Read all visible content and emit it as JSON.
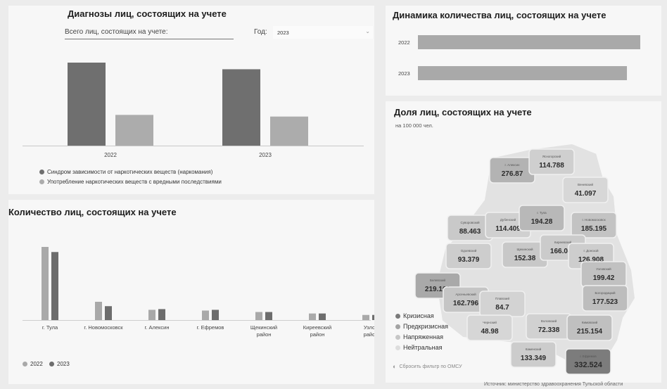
{
  "diagnoses": {
    "title": "Диагнозы лиц, состоящих на учете",
    "total_label": "Всего лиц, состоящих на учете:",
    "year_label": "Год:",
    "year_value": "2023",
    "legend": [
      {
        "label": "Синдром зависимости от наркотических веществ (наркомания)",
        "color": "#6f6f6f"
      },
      {
        "label": "Употребление наркотических веществ с вредными последствиями",
        "color": "#acacac"
      }
    ]
  },
  "dynamics": {
    "title": "Динамика количества лиц, состоящих на учете"
  },
  "count": {
    "title": "Количество лиц, состоящих на учете",
    "legend": [
      {
        "label": "2022",
        "color": "#a9a9a9"
      },
      {
        "label": "2023",
        "color": "#6d6d6d"
      }
    ]
  },
  "share": {
    "title": "Доля лиц, состоящих на учете",
    "subtitle": "на 100 000 чел.",
    "legend": [
      {
        "label": "Кризисная",
        "color": "#7a7a7a"
      },
      {
        "label": "Предкризисная",
        "color": "#a3a3a3"
      },
      {
        "label": "Напряженная",
        "color": "#c6c6c6"
      },
      {
        "label": "Нейтральная",
        "color": "#dddddd"
      }
    ],
    "reset_label": "Сбросить фильтр по ОМСУ",
    "regions": [
      {
        "name": "г. Алексин",
        "value": "276.87",
        "shade": "#b3b3b3"
      },
      {
        "name": "Ясногорский",
        "value": "114.788",
        "shade": "#cfcfcf"
      },
      {
        "name": "Веневский",
        "value": "41.097",
        "shade": "#d7d7d7"
      },
      {
        "name": "Суворовский",
        "value": "88.463",
        "shade": "#c9c9c9"
      },
      {
        "name": "Дубенский",
        "value": "114.409",
        "shade": "#d0d0d0"
      },
      {
        "name": "г. Тула",
        "value": "194.28",
        "shade": "#b8b8b8"
      },
      {
        "name": "г. Новомосковск",
        "value": "185.195",
        "shade": "#c3c3c3"
      },
      {
        "name": "Одоевский",
        "value": "93.379",
        "shade": "#cdcdcd"
      },
      {
        "name": "Щекинский",
        "value": "152.38",
        "shade": "#c8c8c8"
      },
      {
        "name": "Киреевский",
        "value": "166.041",
        "shade": "#cbcbcb"
      },
      {
        "name": "г. Донской",
        "value": "126.908",
        "shade": "#cdcdcd"
      },
      {
        "name": "Узловский",
        "value": "199.42",
        "shade": "#c1c1c1"
      },
      {
        "name": "Белевский",
        "value": "219.169",
        "shade": "#a9a9a9"
      },
      {
        "name": "Арсеньевский",
        "value": "162.796",
        "shade": "#c5c5c5"
      },
      {
        "name": "Плавский",
        "value": "84.7",
        "shade": "#d3d3d3"
      },
      {
        "name": "Богородицкий",
        "value": "177.523",
        "shade": "#bdbdbd"
      },
      {
        "name": "Чернский",
        "value": "48.98",
        "shade": "#d6d6d6"
      },
      {
        "name": "Воловский",
        "value": "72.338",
        "shade": "#d1d1d1"
      },
      {
        "name": "Кимовский",
        "value": "215.154",
        "shade": "#c0c0c0"
      },
      {
        "name": "Каменский",
        "value": "133.349",
        "shade": "#cccccc"
      },
      {
        "name": "г. Ефремов",
        "value": "332.524",
        "shade": "#7c7c7c"
      }
    ]
  },
  "source": "Источник: министерство здравоохранения Тульской области",
  "chart_data": [
    {
      "type": "bar",
      "title": "Диагнозы лиц, состоящих на учете",
      "categories": [
        "2022",
        "2023"
      ],
      "series": [
        {
          "name": "Синдром зависимости от наркотических веществ (наркомания)",
          "values": [
            100,
            92
          ]
        },
        {
          "name": "Употребление наркотических веществ с вредными последствиями",
          "values": [
            37,
            35
          ]
        }
      ]
    },
    {
      "type": "bar",
      "orientation": "horizontal",
      "title": "Динамика количества лиц, состоящих на учете",
      "categories": [
        "2022",
        "2023"
      ],
      "values": [
        100,
        94
      ]
    },
    {
      "type": "bar",
      "title": "Количество лиц, состоящих на учете",
      "categories": [
        "г. Тула",
        "г. Новомосковск",
        "г. Алексин",
        "г. Ефремов",
        "Щекинский район",
        "Киреевский район",
        "Узловский район"
      ],
      "series": [
        {
          "name": "2022",
          "values": [
            100,
            25,
            14,
            13,
            11,
            9,
            7
          ]
        },
        {
          "name": "2023",
          "values": [
            93,
            19,
            15,
            14,
            11,
            9,
            7
          ]
        }
      ]
    }
  ]
}
